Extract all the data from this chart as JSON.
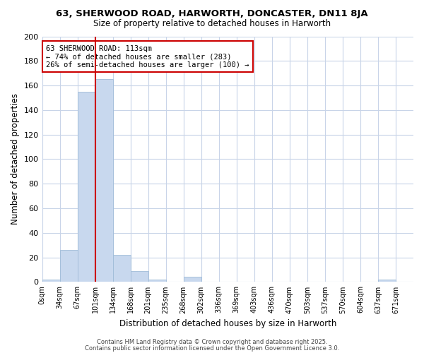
{
  "title1": "63, SHERWOOD ROAD, HARWORTH, DONCASTER, DN11 8JA",
  "title2": "Size of property relative to detached houses in Harworth",
  "xlabel": "Distribution of detached houses by size in Harworth",
  "ylabel": "Number of detached properties",
  "bin_labels": [
    "0sqm",
    "34sqm",
    "67sqm",
    "101sqm",
    "134sqm",
    "168sqm",
    "201sqm",
    "235sqm",
    "268sqm",
    "302sqm",
    "336sqm",
    "369sqm",
    "403sqm",
    "436sqm",
    "470sqm",
    "503sqm",
    "537sqm",
    "570sqm",
    "604sqm",
    "637sqm",
    "671sqm"
  ],
  "bar_heights": [
    2,
    26,
    155,
    165,
    22,
    9,
    2,
    0,
    4,
    0,
    0,
    0,
    0,
    0,
    0,
    0,
    0,
    0,
    0,
    2,
    0
  ],
  "bar_color": "#c8d8ee",
  "bar_edge_color": "#a0bcd8",
  "grid_color": "#c8d4e8",
  "background_color": "#ffffff",
  "plot_bg_color": "#ffffff",
  "red_line_color": "#cc0000",
  "red_line_x": 3.0,
  "annotation_text": "63 SHERWOOD ROAD: 113sqm\n← 74% of detached houses are smaller (283)\n26% of semi-detached houses are larger (100) →",
  "annotation_box_color": "#ffffff",
  "annotation_box_edge": "#cc0000",
  "ylim": [
    0,
    200
  ],
  "yticks": [
    0,
    20,
    40,
    60,
    80,
    100,
    120,
    140,
    160,
    180,
    200
  ],
  "footer1": "Contains HM Land Registry data © Crown copyright and database right 2025.",
  "footer2": "Contains public sector information licensed under the Open Government Licence 3.0."
}
